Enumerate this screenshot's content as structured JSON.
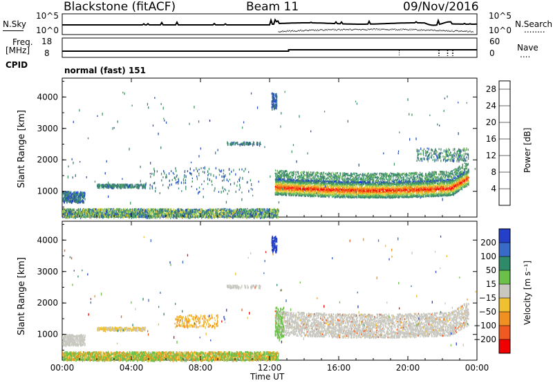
{
  "header": {
    "station": "Blackstone (fitACF)",
    "beam": "Beam 11",
    "date": "09/Nov/2016"
  },
  "noise_panel": {
    "left_label": "N.Sky",
    "right_label": "N.Search",
    "right_dots": "........",
    "left_ticks": [
      "10^5",
      "10^0"
    ],
    "right_ticks": [
      "10^5",
      "10^0"
    ]
  },
  "freq_panel": {
    "left_label_line1": "Freq.",
    "left_label_line2": "[MHz]",
    "right_label": "Nave",
    "right_dots": "....",
    "left_ticks": [
      "18",
      "8"
    ],
    "right_ticks": [
      "60",
      "0"
    ]
  },
  "cpid": {
    "label": "CPID",
    "value": "normal (fast) 151"
  },
  "colors": {
    "power_scale": [
      "#0020ff",
      "#2a52b8",
      "#3f7f7a",
      "#3f9a60",
      "#7ec45a",
      "#e2d64a",
      "#f5a21e",
      "#f06018",
      "#ff0000"
    ],
    "velocity_scale": [
      "#2540c8",
      "#3a6ac8",
      "#2f8a6a",
      "#6cc04a",
      "#c8c8c0",
      "#f0c030",
      "#f09020",
      "#f05a20",
      "#f00000"
    ]
  },
  "chart_data": [
    {
      "type": "heatmap",
      "title": "",
      "xlabel": "Time UT",
      "ylabel": "Slant Range [km]",
      "x_ticks": [
        "00:00",
        "04:00",
        "08:00",
        "12:00",
        "16:00",
        "20:00",
        "00:00"
      ],
      "xlim_hours": [
        0,
        24
      ],
      "y_ticks": [
        "1000",
        "2000",
        "3000",
        "4000"
      ],
      "ylim_km": [
        180,
        4600
      ],
      "colorbar": {
        "label": "Power [dB]",
        "ticks": [
          "4",
          "8",
          "12",
          "16",
          "20",
          "24",
          "28"
        ],
        "range": [
          0,
          30
        ]
      },
      "features": [
        {
          "name": "dense scatter band",
          "t_start": 12.3,
          "t_end": 23.5,
          "range_center_km": 1150,
          "value": 26
        },
        {
          "name": "band upper edge",
          "t_start": 12.3,
          "t_end": 23.5,
          "range_center_km": 1650,
          "value": 12
        },
        {
          "name": "near range scatter",
          "t_start": 0,
          "t_end": 12.5,
          "range_center_km": 320,
          "value": 8
        },
        {
          "name": "early echo",
          "t_start": 0,
          "t_end": 1.3,
          "range_center_km": 800,
          "value": 6
        },
        {
          "name": "mid echo",
          "t_start": 2,
          "t_end": 4.8,
          "range_center_km": 1200,
          "value": 8
        },
        {
          "name": "burst",
          "t_start": 12,
          "t_end": 12.5,
          "range_center_km": 3900,
          "value": 5
        }
      ]
    },
    {
      "type": "heatmap",
      "title": "",
      "xlabel": "Time UT",
      "ylabel": "Slant Range [km]",
      "x_ticks": [
        "00:00",
        "04:00",
        "08:00",
        "12:00",
        "16:00",
        "20:00",
        "00:00"
      ],
      "xlim_hours": [
        0,
        24
      ],
      "y_ticks": [
        "1000",
        "2000",
        "3000",
        "4000"
      ],
      "ylim_km": [
        180,
        4600
      ],
      "colorbar": {
        "label": "Velocity [m s⁻¹]",
        "ticks": [
          "200",
          "100",
          "50",
          "15",
          "−15",
          "−50",
          "−100",
          "−200"
        ],
        "range": [
          -250,
          250
        ]
      },
      "features": [
        {
          "name": "ground scatter band",
          "t_start": 12.3,
          "t_end": 23.5,
          "range_center_km": 1350,
          "value": 0
        },
        {
          "name": "near range scatter",
          "t_start": 0,
          "t_end": 12.5,
          "range_center_km": 320,
          "value": -40
        },
        {
          "name": "burst",
          "t_start": 12,
          "t_end": 12.5,
          "range_center_km": 3900,
          "value": 200
        },
        {
          "name": "early echo",
          "t_start": 0,
          "t_end": 1.3,
          "range_center_km": 800,
          "value": 0
        }
      ]
    }
  ]
}
